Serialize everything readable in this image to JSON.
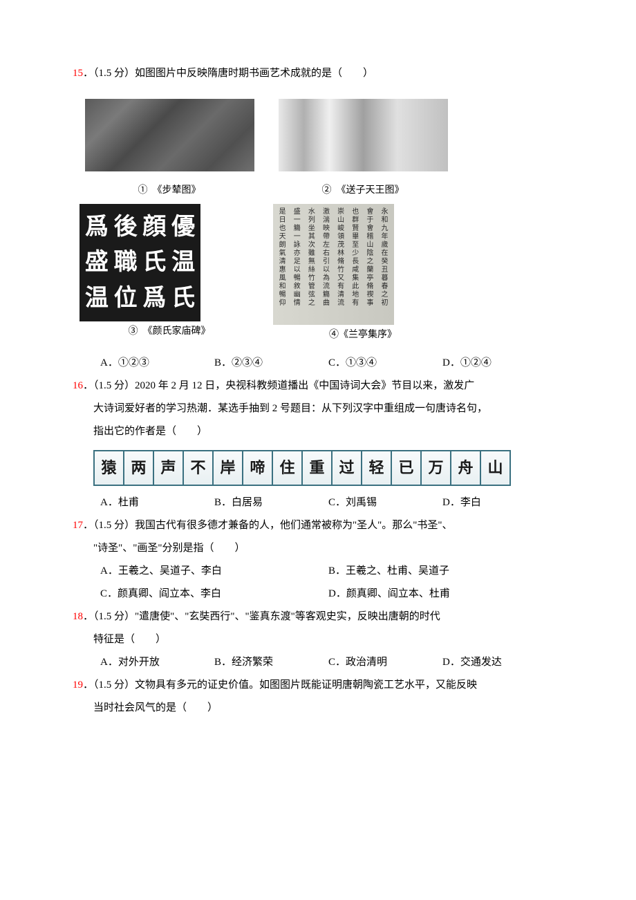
{
  "q15": {
    "number": "15",
    "points": "（1.5 分）",
    "stem": "如图图片中反映隋唐时期书画艺术成就的是（　　）",
    "captions": {
      "c1_num": "①",
      "c1_title": "《步辇图》",
      "c2_num": "②",
      "c2_title": "《送子天王图》",
      "c3_num": "③",
      "c3_title": "《颜氏家庙碑》",
      "c4_num": "④",
      "c4_title": "《兰亭集序》"
    },
    "calli1_text": {
      "col1": "爲盛温",
      "col2": "後職位",
      "col3": "顔氏爲",
      "col4": "優温氏"
    },
    "options": {
      "A": "①②③",
      "B": "②③④",
      "C": "①③④",
      "D": "①②④"
    }
  },
  "q16": {
    "number": "16",
    "points": "（1.5 分）",
    "stem1": "2020 年 2 月 12 日，央视科教频道播出《中国诗词大会》节目以来，激发广",
    "stem2": "大诗词爱好者的学习热潮．某选手抽到 2 号题目：从下列汉字中重组成一句唐诗名句，",
    "stem3": "指出它的作者是（　　）",
    "chars": [
      "猿",
      "两",
      "声",
      "不",
      "岸",
      "啼",
      "住",
      "重",
      "过",
      "轻",
      "已",
      "万",
      "舟",
      "山"
    ],
    "options": {
      "A": "杜甫",
      "B": "白居易",
      "C": "刘禹锡",
      "D": "李白"
    }
  },
  "q17": {
    "number": "17",
    "points": "（1.5 分）",
    "stem1": "我国古代有很多德才兼备的人，他们通常被称为\"圣人\"。那么\"书圣\"、",
    "stem2": "\"诗圣\"、\"画圣\"分别是指（　　）",
    "options": {
      "A": "王羲之、吴道子、李白",
      "B": "王羲之、杜甫、吴道子",
      "C": "颜真卿、阎立本、李白",
      "D": "颜真卿、阎立本、杜甫"
    }
  },
  "q18": {
    "number": "18",
    "points": "（1.5 分）",
    "stem1": "\"遣唐使\"、\"玄奘西行\"、\"鉴真东渡\"等客观史实，反映出唐朝的时代",
    "stem2": "特征是（　　）",
    "options": {
      "A": "对外开放",
      "B": "经济繁荣",
      "C": "政治清明",
      "D": "交通发达"
    }
  },
  "q19": {
    "number": "19",
    "points": "（1.5 分）",
    "stem1": "文物具有多元的证史价值。如图图片既能证明唐朝陶瓷工艺水平，又能反映",
    "stem2": "当时社会风气的是（　　）"
  },
  "labels": {
    "A": "A．",
    "B": "B．",
    "C": "C．",
    "D": "D．"
  },
  "colors": {
    "accent": "#ff0000",
    "text": "#000000",
    "table_border": "#3a7080"
  }
}
